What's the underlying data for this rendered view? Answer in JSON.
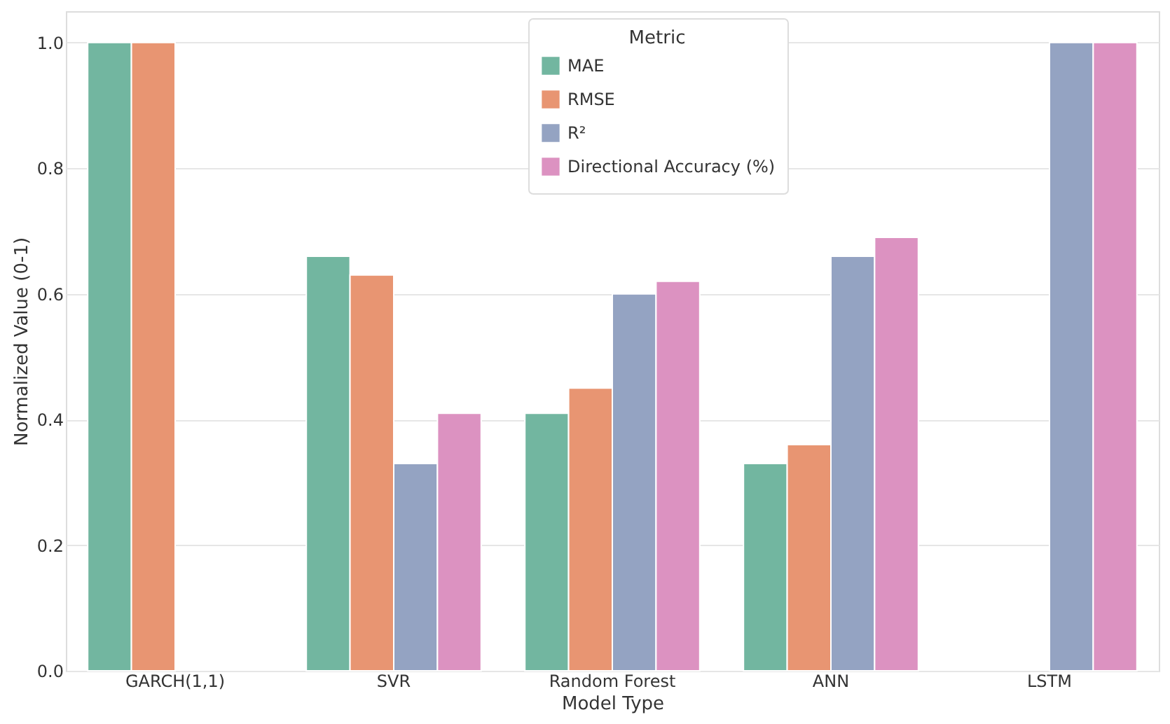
{
  "chart_data": {
    "type": "bar",
    "xlabel": "Model Type",
    "ylabel": "Normalized Value (0-1)",
    "legend_title": "Metric",
    "categories": [
      "GARCH(1,1)",
      "SVR",
      "Random Forest",
      "ANN",
      "LSTM"
    ],
    "series": [
      {
        "name": "MAE",
        "color": "#72b6a0",
        "values": [
          1.0,
          0.66,
          0.41,
          0.33,
          null
        ]
      },
      {
        "name": "RMSE",
        "color": "#e89572",
        "values": [
          1.0,
          0.63,
          0.45,
          0.36,
          null
        ]
      },
      {
        "name": "R²",
        "color": "#94a3c2",
        "values": [
          null,
          0.33,
          0.6,
          0.66,
          1.0
        ]
      },
      {
        "name": "Directional Accuracy (%)",
        "color": "#dc92c1",
        "values": [
          null,
          0.41,
          0.62,
          0.69,
          1.0
        ]
      }
    ],
    "ylim": [
      0,
      1.05
    ],
    "yticks": [
      {
        "value": 0,
        "label": "0.0"
      },
      0.2,
      0.4,
      0.6,
      0.8,
      {
        "value": 1,
        "label": "1.0"
      }
    ],
    "grid": "y",
    "legend": "top"
  }
}
